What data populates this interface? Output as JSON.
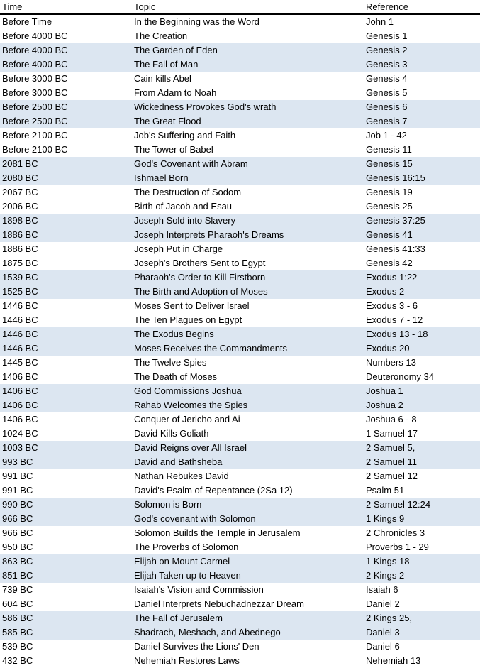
{
  "table": {
    "headers": {
      "time": "Time",
      "topic": "Topic",
      "reference": "Reference"
    },
    "shade_color": "#dce6f1",
    "rows": [
      {
        "time": "Before Time",
        "topic": "In the Beginning was the Word",
        "reference": "John 1"
      },
      {
        "time": "Before 4000 BC",
        "topic": "The Creation",
        "reference": "Genesis 1"
      },
      {
        "time": "Before 4000 BC",
        "topic": "The Garden of Eden",
        "reference": "Genesis 2"
      },
      {
        "time": "Before 4000 BC",
        "topic": "The Fall of Man",
        "reference": "Genesis 3"
      },
      {
        "time": "Before 3000 BC",
        "topic": "Cain kills Abel",
        "reference": "Genesis 4"
      },
      {
        "time": "Before 3000 BC",
        "topic": "From Adam to Noah",
        "reference": "Genesis 5"
      },
      {
        "time": "Before 2500 BC",
        "topic": "Wickedness Provokes God's wrath",
        "reference": "Genesis 6"
      },
      {
        "time": "Before 2500 BC",
        "topic": "The Great Flood",
        "reference": "Genesis 7"
      },
      {
        "time": "Before 2100 BC",
        "topic": "Job's Suffering and Faith",
        "reference": "Job 1 - 42"
      },
      {
        "time": "Before 2100 BC",
        "topic": "The Tower of Babel",
        "reference": "Genesis 11"
      },
      {
        "time": "2081 BC",
        "topic": "God's Covenant with Abram",
        "reference": "Genesis 15"
      },
      {
        "time": "2080 BC",
        "topic": "Ishmael Born",
        "reference": "Genesis 16:15"
      },
      {
        "time": "2067 BC",
        "topic": "The Destruction of Sodom",
        "reference": "Genesis 19"
      },
      {
        "time": "2006 BC",
        "topic": "Birth of Jacob and Esau",
        "reference": "Genesis 25"
      },
      {
        "time": "1898 BC",
        "topic": "Joseph Sold into Slavery",
        "reference": "Genesis 37:25"
      },
      {
        "time": "1886 BC",
        "topic": "Joseph Interprets Pharaoh's Dreams",
        "reference": "Genesis 41"
      },
      {
        "time": "1886 BC",
        "topic": "Joseph Put in Charge",
        "reference": "Genesis 41:33"
      },
      {
        "time": "1875 BC",
        "topic": "Joseph's Brothers Sent to Egypt",
        "reference": "Genesis 42"
      },
      {
        "time": "1539 BC",
        "topic": "Pharaoh's Order to Kill Firstborn",
        "reference": "Exodus 1:22"
      },
      {
        "time": "1525 BC",
        "topic": "The Birth and Adoption of Moses",
        "reference": "Exodus 2"
      },
      {
        "time": "1446 BC",
        "topic": "Moses Sent to Deliver Israel",
        "reference": "Exodus 3 - 6"
      },
      {
        "time": "1446 BC",
        "topic": "The Ten Plagues on Egypt",
        "reference": "Exodus 7 - 12"
      },
      {
        "time": "1446 BC",
        "topic": "The Exodus Begins",
        "reference": "Exodus 13 - 18"
      },
      {
        "time": "1446 BC",
        "topic": "Moses Receives the Commandments",
        "reference": "Exodus 20"
      },
      {
        "time": "1445 BC",
        "topic": "The Twelve Spies",
        "reference": "Numbers 13"
      },
      {
        "time": "1406 BC",
        "topic": "The Death of Moses",
        "reference": "Deuteronomy 34"
      },
      {
        "time": "1406 BC",
        "topic": "God Commissions Joshua",
        "reference": "Joshua 1"
      },
      {
        "time": "1406 BC",
        "topic": "Rahab Welcomes the Spies",
        "reference": "Joshua 2"
      },
      {
        "time": "1406 BC",
        "topic": "Conquer of Jericho and Ai",
        "reference": "Joshua 6 - 8"
      },
      {
        "time": "1024 BC",
        "topic": "David Kills Goliath",
        "reference": "1 Samuel 17"
      },
      {
        "time": "1003 BC",
        "topic": "David Reigns over All Israel",
        "reference": "2 Samuel 5,"
      },
      {
        "time": "993 BC",
        "topic": "David and Bathsheba",
        "reference": "2 Samuel 11"
      },
      {
        "time": "991 BC",
        "topic": "Nathan Rebukes David",
        "reference": "2 Samuel 12"
      },
      {
        "time": "991 BC",
        "topic": "David's Psalm of Repentance (2Sa 12)",
        "reference": "Psalm 51"
      },
      {
        "time": "990 BC",
        "topic": "Solomon is Born",
        "reference": "2 Samuel 12:24"
      },
      {
        "time": "966 BC",
        "topic": "God's covenant with Solomon",
        "reference": "1 Kings 9"
      },
      {
        "time": "966 BC",
        "topic": "Solomon Builds the Temple in Jerusalem",
        "reference": "2 Chronicles 3"
      },
      {
        "time": "950 BC",
        "topic": "The Proverbs of Solomon",
        "reference": "Proverbs 1 - 29"
      },
      {
        "time": "863 BC",
        "topic": "Elijah on Mount Carmel",
        "reference": "1 Kings 18"
      },
      {
        "time": "851 BC",
        "topic": "Elijah Taken up to Heaven",
        "reference": "2 Kings 2"
      },
      {
        "time": "739 BC",
        "topic": "Isaiah's Vision and Commission",
        "reference": "Isaiah 6"
      },
      {
        "time": "604 BC",
        "topic": "Daniel Interprets Nebuchadnezzar Dream",
        "reference": "Daniel 2"
      },
      {
        "time": "586 BC",
        "topic": "The Fall of Jerusalem",
        "reference": "2 Kings 25,"
      },
      {
        "time": "585 BC",
        "topic": "Shadrach, Meshach, and Abednego",
        "reference": "Daniel 3"
      },
      {
        "time": "539 BC",
        "topic": "Daniel Survives the Lions' Den",
        "reference": "Daniel 6"
      },
      {
        "time": "432 BC",
        "topic": "Nehemiah Restores Laws",
        "reference": "Nehemiah 13"
      }
    ]
  }
}
